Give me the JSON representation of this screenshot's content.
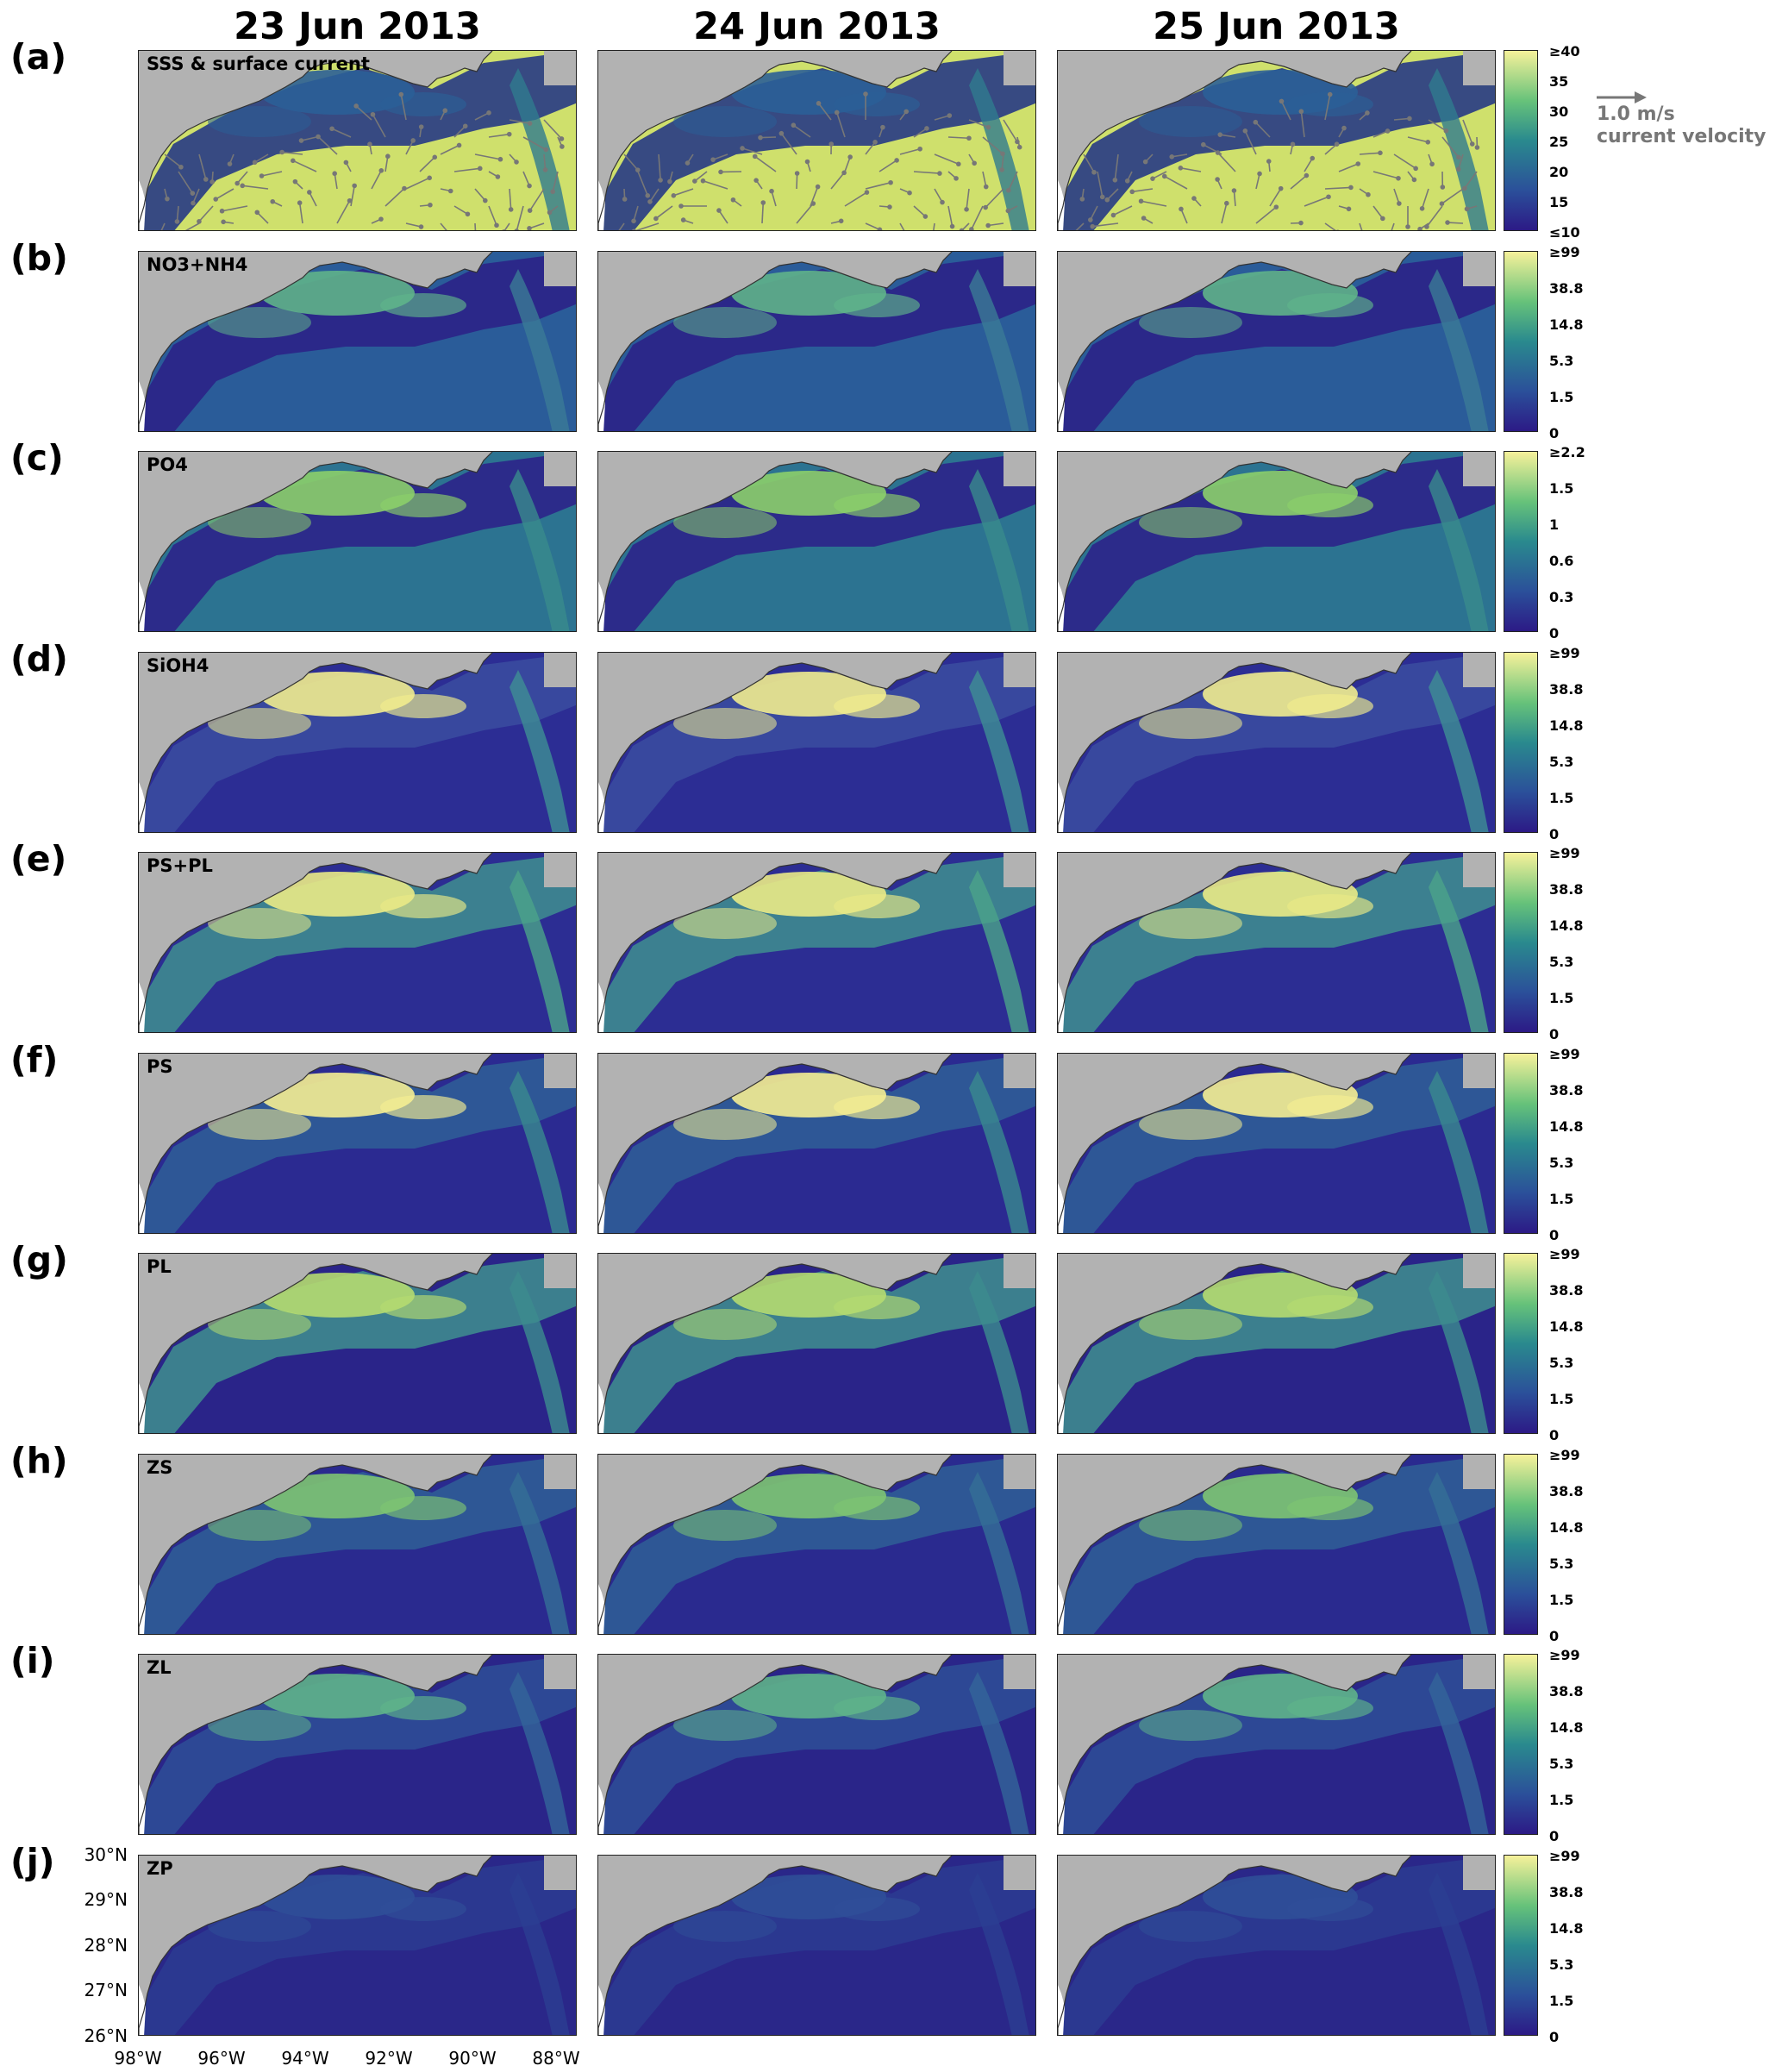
{
  "columns": [
    "23 Jun 2013",
    "24 Jun 2013",
    "25 Jun 2013"
  ],
  "rows": [
    {
      "tag": "(a)",
      "label": "SSS & surface current",
      "kind": "salinity",
      "ticks": [
        "≥40",
        "35",
        "30",
        "25",
        "20",
        "15",
        "≤10"
      ]
    },
    {
      "tag": "(b)",
      "label": "NO3+NH4",
      "kind": "nitrate",
      "ticks": [
        "≥99",
        "38.8",
        "14.8",
        "5.3",
        "1.5",
        "0"
      ]
    },
    {
      "tag": "(c)",
      "label": "PO4",
      "kind": "phosphate",
      "ticks": [
        "≥2.2",
        "1.5",
        "1",
        "0.6",
        "0.3",
        "0"
      ]
    },
    {
      "tag": "(d)",
      "label": "SiOH4",
      "kind": "silicate",
      "ticks": [
        "≥99",
        "38.8",
        "14.8",
        "5.3",
        "1.5",
        "0"
      ]
    },
    {
      "tag": "(e)",
      "label": "PS+PL",
      "kind": "phyto_total",
      "ticks": [
        "≥99",
        "38.8",
        "14.8",
        "5.3",
        "1.5",
        "0"
      ]
    },
    {
      "tag": "(f)",
      "label": "PS",
      "kind": "phyto_small",
      "ticks": [
        "≥99",
        "38.8",
        "14.8",
        "5.3",
        "1.5",
        "0"
      ]
    },
    {
      "tag": "(g)",
      "label": "PL",
      "kind": "phyto_large",
      "ticks": [
        "≥99",
        "38.8",
        "14.8",
        "5.3",
        "1.5",
        "0"
      ]
    },
    {
      "tag": "(h)",
      "label": "ZS",
      "kind": "zoo_small",
      "ticks": [
        "≥99",
        "38.8",
        "14.8",
        "5.3",
        "1.5",
        "0"
      ]
    },
    {
      "tag": "(i)",
      "label": "ZL",
      "kind": "zoo_large",
      "ticks": [
        "≥99",
        "38.8",
        "14.8",
        "5.3",
        "1.5",
        "0"
      ]
    },
    {
      "tag": "(j)",
      "label": "ZP",
      "kind": "zoo_pred",
      "ticks": [
        "≥99",
        "38.8",
        "14.8",
        "5.3",
        "1.5",
        "0"
      ]
    }
  ],
  "reference_vector": {
    "speed": "1.0 m/s",
    "caption": "current velocity"
  },
  "lat_ticks": [
    "30°N",
    "29°N",
    "28°N",
    "27°N",
    "26°N"
  ],
  "lon_ticks": [
    "98°W",
    "96°W",
    "94°W",
    "92°W",
    "90°W",
    "88°W"
  ],
  "colors": {
    "land": "#b2b2b2",
    "low": "#2c1f8a",
    "mid": "#2a8a8e",
    "high": "#f7f19b",
    "arrow": "#777777"
  }
}
